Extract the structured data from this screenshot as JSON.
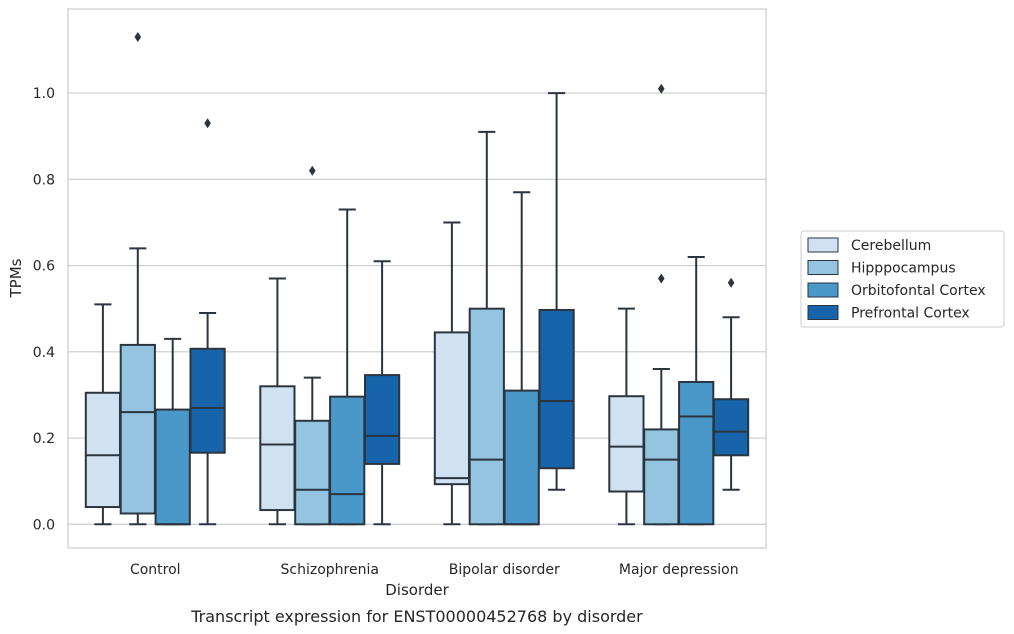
{
  "chart_data": {
    "type": "box",
    "caption": "Transcript expression for ENST00000452768 by disorder",
    "xlabel": "Disorder",
    "ylabel": "TPMs",
    "ylim": [
      -0.055,
      1.195
    ],
    "yticks": [
      "0.0",
      "0.2",
      "0.4",
      "0.6",
      "0.8",
      "1.0"
    ],
    "grid": "horizontal",
    "legend_position": "right",
    "categories": [
      "Control",
      "Schizophrenia",
      "Bipolar disorder",
      "Major depression"
    ],
    "series": [
      {
        "name": "Cerebellum",
        "color": "#d0e1f2",
        "boxes": [
          {
            "whislo": 0.0,
            "q1": 0.04,
            "med": 0.16,
            "q3": 0.305,
            "whishi": 0.51,
            "fliers": []
          },
          {
            "whislo": 0.0,
            "q1": 0.033,
            "med": 0.185,
            "q3": 0.32,
            "whishi": 0.57,
            "fliers": []
          },
          {
            "whislo": 0.0,
            "q1": 0.093,
            "med": 0.107,
            "q3": 0.445,
            "whishi": 0.7,
            "fliers": []
          },
          {
            "whislo": 0.0,
            "q1": 0.076,
            "med": 0.18,
            "q3": 0.297,
            "whishi": 0.5,
            "fliers": []
          }
        ]
      },
      {
        "name": "Hipppocampus",
        "color": "#94c4df",
        "boxes": [
          {
            "whislo": 0.0,
            "q1": 0.025,
            "med": 0.26,
            "q3": 0.416,
            "whishi": 0.64,
            "fliers": [
              1.13
            ]
          },
          {
            "whislo": 0.0,
            "q1": 0.0,
            "med": 0.08,
            "q3": 0.24,
            "whishi": 0.34,
            "fliers": [
              0.82
            ]
          },
          {
            "whislo": 0.0,
            "q1": 0.0,
            "med": 0.15,
            "q3": 0.5,
            "whishi": 0.91,
            "fliers": []
          },
          {
            "whislo": 0.0,
            "q1": 0.0,
            "med": 0.15,
            "q3": 0.22,
            "whishi": 0.36,
            "fliers": [
              0.57,
              1.01
            ]
          }
        ]
      },
      {
        "name": "Orbitofontal Cortex",
        "color": "#4a98c9",
        "boxes": [
          {
            "whislo": 0.0,
            "q1": 0.0,
            "med": 0.0,
            "q3": 0.266,
            "whishi": 0.43,
            "fliers": []
          },
          {
            "whislo": 0.0,
            "q1": 0.0,
            "med": 0.07,
            "q3": 0.296,
            "whishi": 0.73,
            "fliers": []
          },
          {
            "whislo": 0.0,
            "q1": 0.0,
            "med": 0.0,
            "q3": 0.31,
            "whishi": 0.77,
            "fliers": []
          },
          {
            "whislo": 0.0,
            "q1": 0.0,
            "med": 0.25,
            "q3": 0.33,
            "whishi": 0.62,
            "fliers": []
          }
        ]
      },
      {
        "name": "Prefrontal Cortex",
        "color": "#1764ab",
        "boxes": [
          {
            "whislo": 0.0,
            "q1": 0.166,
            "med": 0.27,
            "q3": 0.407,
            "whishi": 0.49,
            "fliers": [
              0.93
            ]
          },
          {
            "whislo": 0.0,
            "q1": 0.14,
            "med": 0.205,
            "q3": 0.346,
            "whishi": 0.61,
            "fliers": []
          },
          {
            "whislo": 0.08,
            "q1": 0.13,
            "med": 0.286,
            "q3": 0.497,
            "whishi": 1.0,
            "fliers": []
          },
          {
            "whislo": 0.08,
            "q1": 0.16,
            "med": 0.215,
            "q3": 0.29,
            "whishi": 0.48,
            "fliers": [
              0.56
            ]
          }
        ]
      }
    ]
  },
  "style": {
    "line_color": "#2b3540",
    "grid_color": "#cccccc",
    "frame_color": "#cccccc"
  }
}
